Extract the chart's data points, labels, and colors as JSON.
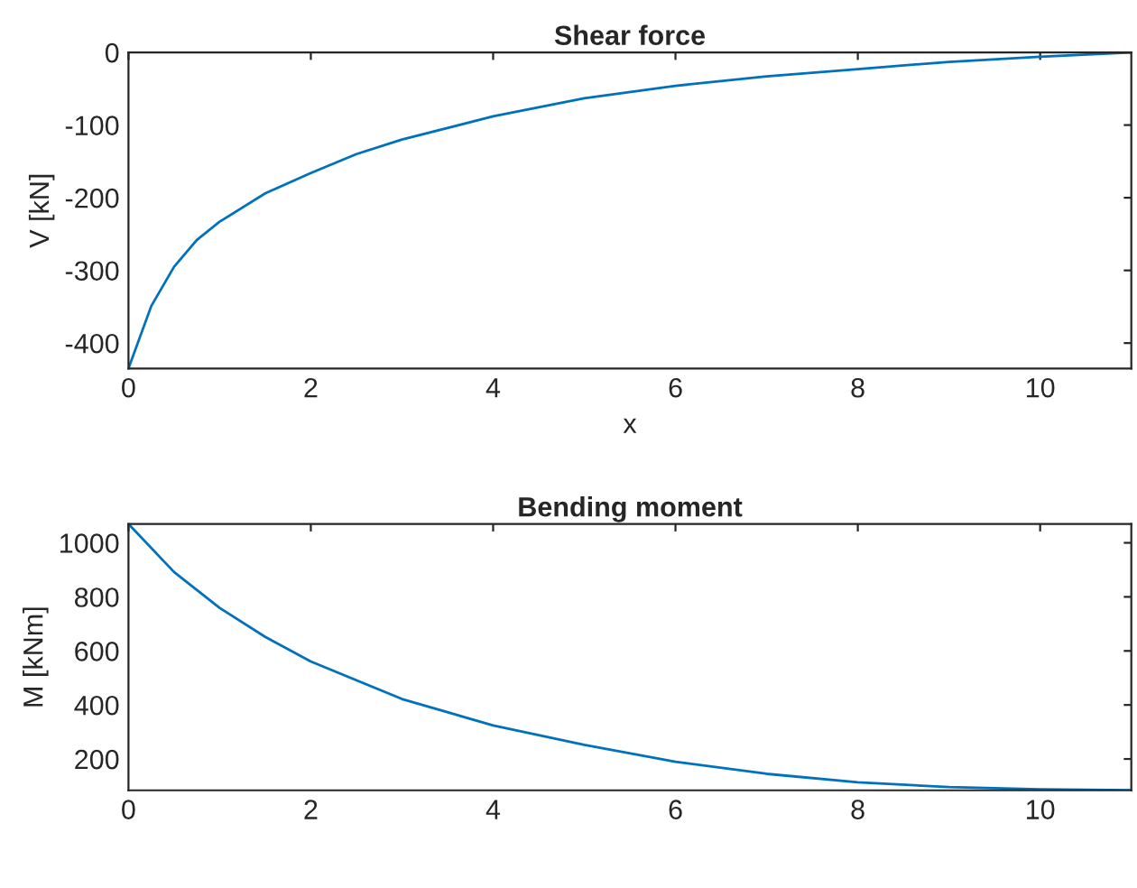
{
  "chart_data": [
    {
      "type": "line",
      "title": "Shear force",
      "xlabel": "x",
      "ylabel": "V [kN]",
      "x": [
        0,
        0.25,
        0.5,
        0.75,
        1,
        1.5,
        2,
        2.5,
        3,
        4,
        5,
        6,
        7,
        8,
        9,
        10,
        11
      ],
      "series": [
        {
          "color": "#0072bd",
          "values": [
            -435,
            -349,
            -295,
            -258,
            -233,
            -194,
            -166,
            -140,
            -120,
            -88,
            -63,
            -46,
            -33,
            -23,
            -13,
            -6,
            0
          ]
        }
      ],
      "xlim": [
        0,
        11
      ],
      "xticks": [
        0,
        2,
        4,
        6,
        8,
        10
      ],
      "ylim": [
        -435,
        0
      ],
      "yticks": [
        -400,
        -300,
        -200,
        -100,
        0
      ],
      "grid": false
    },
    {
      "type": "line",
      "title": "Bending moment",
      "ylabel": "M [kNm]",
      "x": [
        0,
        0.5,
        1,
        1.5,
        2,
        3,
        4,
        5,
        6,
        7,
        8,
        9,
        10,
        11
      ],
      "series": [
        {
          "color": "#0072bd",
          "values": [
            1070,
            892,
            759,
            652,
            561,
            422,
            324,
            252,
            190,
            145,
            114,
            96,
            88,
            84
          ]
        }
      ],
      "xlim": [
        0,
        11
      ],
      "xticks": [
        0,
        2,
        4,
        6,
        8,
        10
      ],
      "ylim": [
        84,
        1070
      ],
      "yticks": [
        200,
        400,
        600,
        800,
        1000
      ],
      "grid": false
    }
  ]
}
